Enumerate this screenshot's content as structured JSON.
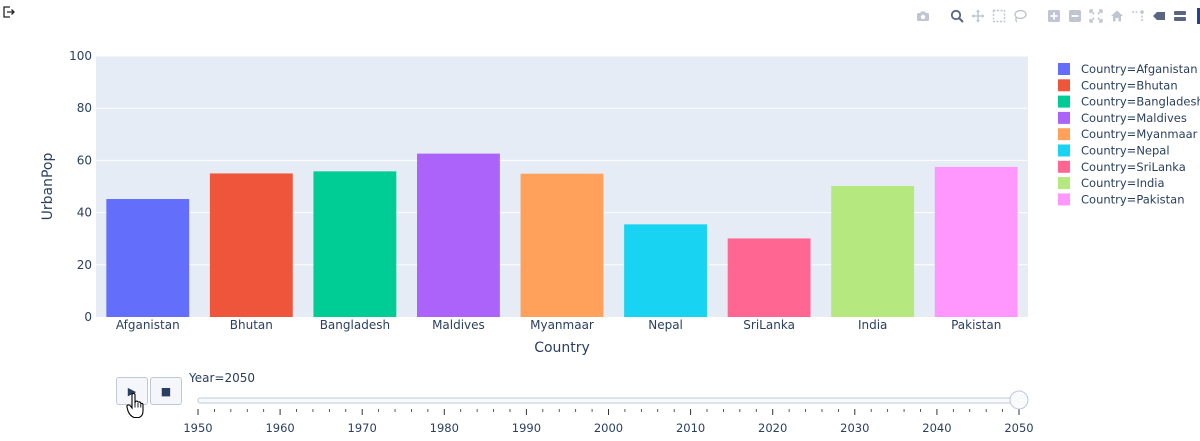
{
  "toolbar": {
    "buttons": [
      "camera-icon",
      "zoom-icon",
      "pan-icon",
      "box-select-icon",
      "lasso-icon",
      "zoom-in-icon",
      "zoom-out-icon",
      "autoscale-icon",
      "reset-axes-icon",
      "spike-lines-icon",
      "hover-closest-icon",
      "hover-compare-icon"
    ]
  },
  "colors": {
    "plot_bg": "#e5ecf6",
    "grid": "#ffffff",
    "text": "#2a3f5f"
  },
  "chart_data": {
    "type": "bar",
    "title": "",
    "xlabel": "Country",
    "ylabel": "UrbanPop",
    "ylim": [
      0,
      100
    ],
    "yticks": [
      0,
      20,
      40,
      60,
      80,
      100
    ],
    "grid": true,
    "legend_position": "right",
    "categories": [
      "Afganistan",
      "Bhutan",
      "Bangladesh",
      "Maldives",
      "Myanmaar",
      "Nepal",
      "SriLanka",
      "India",
      "Pakistan"
    ],
    "values": [
      45.2,
      55.0,
      55.8,
      62.6,
      54.9,
      35.5,
      30.1,
      50.2,
      57.5
    ],
    "series": [
      {
        "name": "Country=Afganistan",
        "color": "#636efa"
      },
      {
        "name": "Country=Bhutan",
        "color": "#ef553b"
      },
      {
        "name": "Country=Bangladesh",
        "color": "#00cc96"
      },
      {
        "name": "Country=Maldives",
        "color": "#ab63fa"
      },
      {
        "name": "Country=Myanmaar",
        "color": "#ffa15a"
      },
      {
        "name": "Country=Nepal",
        "color": "#19d3f3"
      },
      {
        "name": "Country=SriLanka",
        "color": "#ff6692"
      },
      {
        "name": "Country=India",
        "color": "#b6e880"
      },
      {
        "name": "Country=Pakistan",
        "color": "#ff97ff"
      }
    ]
  },
  "animation": {
    "current_label": "Year=2050",
    "play_symbol": "▶",
    "stop_symbol": "■",
    "years": [
      "1950",
      "1960",
      "1970",
      "1980",
      "1990",
      "2000",
      "2010",
      "2020",
      "2030",
      "2040",
      "2050"
    ],
    "current_year": "2050"
  }
}
